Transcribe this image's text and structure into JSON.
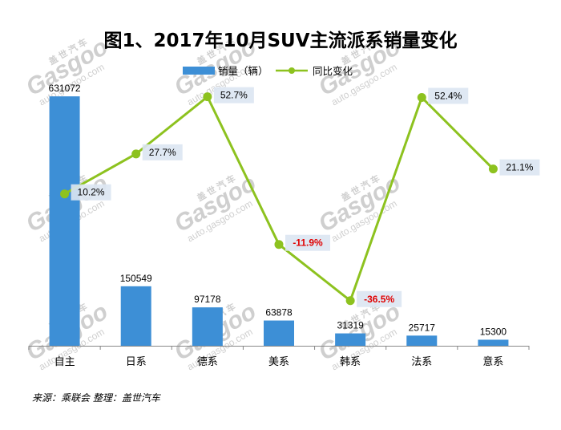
{
  "chart_data": {
    "type": "bar+line",
    "title": "图1、2017年10月SUV主流派系销量变化",
    "categories": [
      "自主",
      "日系",
      "德系",
      "美系",
      "韩系",
      "法系",
      "意系"
    ],
    "series": [
      {
        "name": "销量（辆）",
        "type": "bar",
        "color": "#3d8fd6",
        "values": [
          631072,
          150549,
          97178,
          63878,
          31319,
          25717,
          15300
        ],
        "labels": [
          "631072",
          "150549",
          "97178",
          "63878",
          "31319",
          "25717",
          "15300"
        ]
      },
      {
        "name": "同比变化",
        "type": "line",
        "color": "#8dc21f",
        "values": [
          10.2,
          27.7,
          52.7,
          -11.9,
          -36.5,
          52.4,
          21.1
        ],
        "labels": [
          "10.2%",
          "27.7%",
          "52.7%",
          "-11.9%",
          "-36.5%",
          "52.4%",
          "21.1%"
        ]
      }
    ],
    "ylim_bar": [
      0,
      680000
    ],
    "ylim_line": [
      -45,
      60
    ],
    "grid": false,
    "legend_position": "top"
  },
  "source_text": "来源：乘联会    整理：盖世汽车",
  "watermark": {
    "brand_cn": "盖 世 汽 车",
    "brand_en": "Gasgoo",
    "url": "auto.gasgoo.com"
  }
}
